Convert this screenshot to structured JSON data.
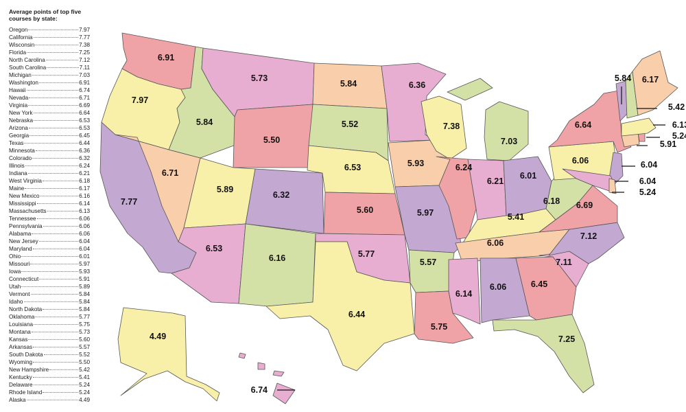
{
  "legend": {
    "title": "Average points of top five courses by state:",
    "rows": [
      {
        "state": "Oregon",
        "value": "7.97"
      },
      {
        "state": "California",
        "value": "7.77"
      },
      {
        "state": "Wisconsin",
        "value": "7.38"
      },
      {
        "state": "Florida",
        "value": "7.25"
      },
      {
        "state": "North Carolina",
        "value": "7.12"
      },
      {
        "state": "South Carolina",
        "value": "7.11"
      },
      {
        "state": "Michigan",
        "value": "7.03"
      },
      {
        "state": "Washington",
        "value": "6.91"
      },
      {
        "state": "Hawaii",
        "value": "6.74"
      },
      {
        "state": "Nevada",
        "value": "6.71"
      },
      {
        "state": "Virginia",
        "value": "6.69"
      },
      {
        "state": "New York",
        "value": "6.64"
      },
      {
        "state": "Nebraska",
        "value": "6.53"
      },
      {
        "state": "Arizona",
        "value": "6.53"
      },
      {
        "state": "Georgia",
        "value": "6.45"
      },
      {
        "state": "Texas",
        "value": "6.44"
      },
      {
        "state": "Minnesota",
        "value": "6.36"
      },
      {
        "state": "Colorado",
        "value": "6.32"
      },
      {
        "state": "Illinois",
        "value": "6.24"
      },
      {
        "state": "Indiana",
        "value": "6.21"
      },
      {
        "state": "West Virginia",
        "value": "6.18"
      },
      {
        "state": "Maine",
        "value": "6.17"
      },
      {
        "state": "New Mexico",
        "value": "6.16"
      },
      {
        "state": "Mississippi",
        "value": "6.14"
      },
      {
        "state": "Massachusetts",
        "value": "6.13"
      },
      {
        "state": "Tennessee",
        "value": "6.06"
      },
      {
        "state": "Pennsylvania",
        "value": "6.06"
      },
      {
        "state": "Alabama",
        "value": "6.06"
      },
      {
        "state": "New Jersey",
        "value": "6.04"
      },
      {
        "state": "Maryland",
        "value": "6.04"
      },
      {
        "state": "Ohio",
        "value": "6.01"
      },
      {
        "state": "Missouri",
        "value": "5.97"
      },
      {
        "state": "Iowa",
        "value": "5.93"
      },
      {
        "state": "Connecticut",
        "value": "5.91"
      },
      {
        "state": "Utah",
        "value": "5.89"
      },
      {
        "state": "Vermont",
        "value": "5.84"
      },
      {
        "state": "Idaho",
        "value": "5.84"
      },
      {
        "state": "North Dakota",
        "value": "5.84"
      },
      {
        "state": "Oklahoma",
        "value": "5.77"
      },
      {
        "state": "Louisiana",
        "value": "5.75"
      },
      {
        "state": "Montana",
        "value": "5.73"
      },
      {
        "state": "Kansas",
        "value": "5.60"
      },
      {
        "state": "Arkansas",
        "value": "5.57"
      },
      {
        "state": "South Dakota",
        "value": "5.52"
      },
      {
        "state": "Wyoming",
        "value": "5.50"
      },
      {
        "state": "New Hampshire",
        "value": "5.42"
      },
      {
        "state": "Kentucky",
        "value": "5.41"
      },
      {
        "state": "Delaware",
        "value": "5.24"
      },
      {
        "state": "Rhode Island",
        "value": "5.24"
      },
      {
        "state": "Alaska",
        "value": "4.49"
      }
    ]
  },
  "palette": {
    "yellow": "#F8EFA8",
    "pink": "#E8AED2",
    "red": "#F0A3A6",
    "peach": "#F9CEAA",
    "purple": "#C3A8D2",
    "green": "#D3E0A6",
    "border": "#555555"
  },
  "map": {
    "states": [
      {
        "id": "WA",
        "name": "Washington",
        "value": "6.91",
        "color": "red"
      },
      {
        "id": "OR",
        "name": "Oregon",
        "value": "7.97",
        "color": "yellow"
      },
      {
        "id": "CA",
        "name": "California",
        "value": "7.77",
        "color": "purple"
      },
      {
        "id": "NV",
        "name": "Nevada",
        "value": "6.71",
        "color": "peach"
      },
      {
        "id": "ID",
        "name": "Idaho",
        "value": "5.84",
        "color": "green"
      },
      {
        "id": "MT",
        "name": "Montana",
        "value": "5.73",
        "color": "pink"
      },
      {
        "id": "WY",
        "name": "Wyoming",
        "value": "5.50",
        "color": "red"
      },
      {
        "id": "UT",
        "name": "Utah",
        "value": "5.89",
        "color": "yellow"
      },
      {
        "id": "AZ",
        "name": "Arizona",
        "value": "6.53",
        "color": "pink"
      },
      {
        "id": "CO",
        "name": "Colorado",
        "value": "6.32",
        "color": "purple"
      },
      {
        "id": "NM",
        "name": "New Mexico",
        "value": "6.16",
        "color": "green"
      },
      {
        "id": "ND",
        "name": "North Dakota",
        "value": "5.84",
        "color": "peach"
      },
      {
        "id": "SD",
        "name": "South Dakota",
        "value": "5.52",
        "color": "green"
      },
      {
        "id": "NE",
        "name": "Nebraska",
        "value": "6.53",
        "color": "yellow"
      },
      {
        "id": "KS",
        "name": "Kansas",
        "value": "5.60",
        "color": "red"
      },
      {
        "id": "OK",
        "name": "Oklahoma",
        "value": "5.77",
        "color": "pink"
      },
      {
        "id": "TX",
        "name": "Texas",
        "value": "6.44",
        "color": "yellow"
      },
      {
        "id": "MN",
        "name": "Minnesota",
        "value": "6.36",
        "color": "pink"
      },
      {
        "id": "IA",
        "name": "Iowa",
        "value": "5.93",
        "color": "peach"
      },
      {
        "id": "MO",
        "name": "Missouri",
        "value": "5.97",
        "color": "purple"
      },
      {
        "id": "AR",
        "name": "Arkansas",
        "value": "5.57",
        "color": "green"
      },
      {
        "id": "LA",
        "name": "Louisiana",
        "value": "5.75",
        "color": "red"
      },
      {
        "id": "WI",
        "name": "Wisconsin",
        "value": "7.38",
        "color": "yellow"
      },
      {
        "id": "IL",
        "name": "Illinois",
        "value": "6.24",
        "color": "red"
      },
      {
        "id": "MI",
        "name": "Michigan",
        "value": "7.03",
        "color": "green"
      },
      {
        "id": "IN",
        "name": "Indiana",
        "value": "6.21",
        "color": "pink"
      },
      {
        "id": "OH",
        "name": "Ohio",
        "value": "6.01",
        "color": "purple"
      },
      {
        "id": "KY",
        "name": "Kentucky",
        "value": "5.41",
        "color": "yellow"
      },
      {
        "id": "TN",
        "name": "Tennessee",
        "value": "6.06",
        "color": "peach"
      },
      {
        "id": "MS",
        "name": "Mississippi",
        "value": "6.14",
        "color": "pink"
      },
      {
        "id": "AL",
        "name": "Alabama",
        "value": "6.06",
        "color": "purple"
      },
      {
        "id": "GA",
        "name": "Georgia",
        "value": "6.45",
        "color": "red"
      },
      {
        "id": "FL",
        "name": "Florida",
        "value": "7.25",
        "color": "green"
      },
      {
        "id": "SC",
        "name": "South Carolina",
        "value": "7.11",
        "color": "pink"
      },
      {
        "id": "NC",
        "name": "North Carolina",
        "value": "7.12",
        "color": "purple"
      },
      {
        "id": "VA",
        "name": "Virginia",
        "value": "6.69",
        "color": "red"
      },
      {
        "id": "WV",
        "name": "West Virginia",
        "value": "6.18",
        "color": "green"
      },
      {
        "id": "PA",
        "name": "Pennsylvania",
        "value": "6.06",
        "color": "yellow"
      },
      {
        "id": "NY",
        "name": "New York",
        "value": "6.64",
        "color": "red"
      },
      {
        "id": "NJ",
        "name": "New Jersey",
        "value": "6.04",
        "color": "purple"
      },
      {
        "id": "MD",
        "name": "Maryland",
        "value": "6.04",
        "color": "pink"
      },
      {
        "id": "DE",
        "name": "Delaware",
        "value": "5.24",
        "color": "peach"
      },
      {
        "id": "CT",
        "name": "Connecticut",
        "value": "5.91",
        "color": "peach"
      },
      {
        "id": "RI",
        "name": "Rhode Island",
        "value": "5.24",
        "color": "red"
      },
      {
        "id": "MA",
        "name": "Massachusetts",
        "value": "6.13",
        "color": "yellow"
      },
      {
        "id": "VT",
        "name": "Vermont",
        "value": "5.84",
        "color": "purple"
      },
      {
        "id": "NH",
        "name": "New Hampshire",
        "value": "5.42",
        "color": "green"
      },
      {
        "id": "ME",
        "name": "Maine",
        "value": "6.17",
        "color": "peach"
      },
      {
        "id": "AK",
        "name": "Alaska",
        "value": "4.49",
        "color": "yellow"
      },
      {
        "id": "HI",
        "name": "Hawaii",
        "value": "6.74",
        "color": "pink"
      }
    ]
  }
}
